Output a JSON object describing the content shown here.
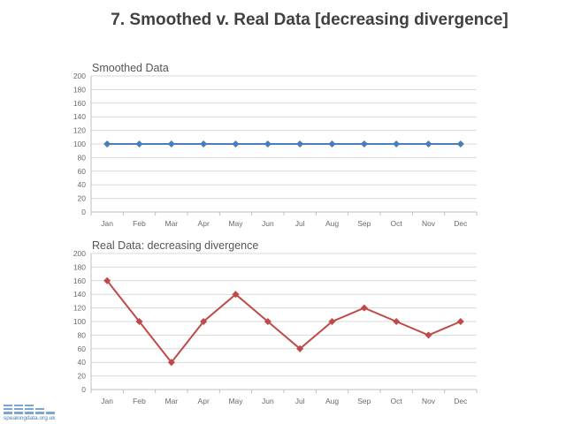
{
  "slide": {
    "title": "7. Smoothed v. Real Data [decreasing divergence]"
  },
  "logo": {
    "text": "speakingdata.org.uk"
  },
  "colors": {
    "smoothed": "#4a7ebb",
    "real": "#be4b48",
    "grid": "#d9d9d9",
    "axis": "#bfbfbf"
  },
  "chart_data": [
    {
      "type": "line",
      "title": "Smoothed Data",
      "categories": [
        "Jan",
        "Feb",
        "Mar",
        "Apr",
        "May",
        "Jun",
        "Jul",
        "Aug",
        "Sep",
        "Oct",
        "Nov",
        "Dec"
      ],
      "values": [
        100,
        100,
        100,
        100,
        100,
        100,
        100,
        100,
        100,
        100,
        100,
        100
      ],
      "ylim": [
        0,
        200
      ],
      "yticks": [
        "0",
        "20",
        "40",
        "60",
        "80",
        "100",
        "120",
        "140",
        "160",
        "180",
        "200"
      ],
      "marker": "diamond",
      "grid": true,
      "legend": "none"
    },
    {
      "type": "line",
      "title": "Real Data: decreasing divergence",
      "categories": [
        "Jan",
        "Feb",
        "Mar",
        "Apr",
        "May",
        "Jun",
        "Jul",
        "Aug",
        "Sep",
        "Oct",
        "Nov",
        "Dec"
      ],
      "values": [
        160,
        100,
        40,
        100,
        140,
        100,
        60,
        100,
        120,
        100,
        80,
        100
      ],
      "ylim": [
        0,
        200
      ],
      "yticks": [
        "0",
        "20",
        "40",
        "60",
        "80",
        "100",
        "120",
        "140",
        "160",
        "180",
        "200"
      ],
      "marker": "diamond",
      "grid": true,
      "legend": "none"
    }
  ]
}
